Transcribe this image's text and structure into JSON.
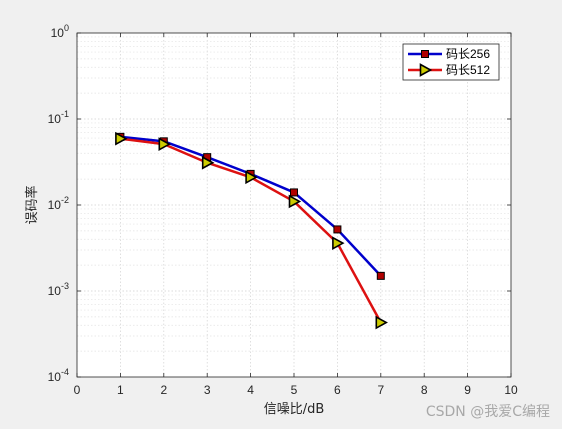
{
  "chart_data": {
    "type": "line",
    "title": "",
    "xlabel": "信噪比/dB",
    "ylabel": "误码率",
    "xlim": [
      0,
      10
    ],
    "ylim": [
      0.0001,
      1
    ],
    "y_scale": "log",
    "grid": true,
    "legend_position": "top-right",
    "x_ticks": [
      "0",
      "1",
      "2",
      "3",
      "4",
      "5",
      "6",
      "7",
      "8",
      "9",
      "10"
    ],
    "y_ticks": [
      {
        "base": "10",
        "exp": "0"
      },
      {
        "base": "10",
        "exp": "-1"
      },
      {
        "base": "10",
        "exp": "-2"
      },
      {
        "base": "10",
        "exp": "-3"
      },
      {
        "base": "10",
        "exp": "-4"
      }
    ],
    "series": [
      {
        "name": "码长256",
        "color": "#0000cc",
        "marker": "square",
        "marker_fill": "#b00000",
        "x": [
          1,
          2,
          3,
          4,
          5,
          6,
          7
        ],
        "y": [
          0.062,
          0.055,
          0.036,
          0.023,
          0.014,
          0.0052,
          0.0015
        ]
      },
      {
        "name": "码长512",
        "color": "#dd1111",
        "marker": "triangle-right",
        "marker_fill": "#cccc00",
        "x": [
          1,
          2,
          3,
          4,
          5,
          6,
          7
        ],
        "y": [
          0.059,
          0.051,
          0.031,
          0.021,
          0.011,
          0.0036,
          0.00043
        ]
      }
    ]
  },
  "watermark": "CSDN @我爱C编程"
}
